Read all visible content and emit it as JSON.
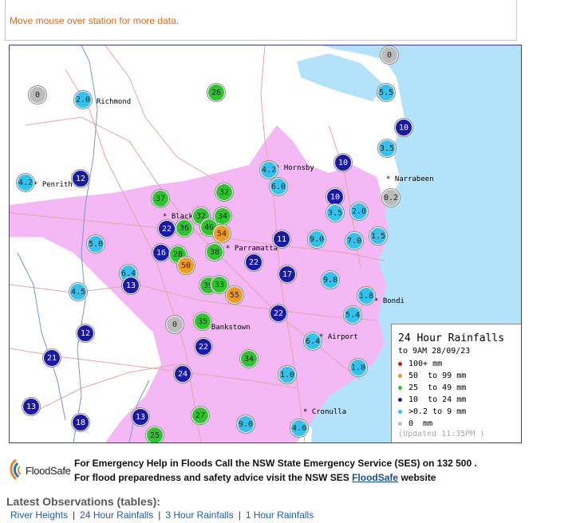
{
  "hint": "Move mouse over station for more data.",
  "colors": {
    "water": "#b3e2fb",
    "urban": "#f4b8f4",
    "road": "#e5a5a5",
    "river": "#7799cc",
    "cat_100": "#cc1a1a",
    "cat_50": "#f29a1e",
    "cat_25": "#2ec42e",
    "cat_10": "#1a1aaa",
    "cat_02": "#33c2ee",
    "cat_0": "#bbbbbb"
  },
  "legend": {
    "title": "24 Hour Rainfalls",
    "subtitle": "to 9AM 28/09/23",
    "items": [
      {
        "label": "100+ mm",
        "cat": "cat_100"
      },
      {
        "label": "50  to 99 mm",
        "cat": "cat_50"
      },
      {
        "label": "25  to 49 mm",
        "cat": "cat_25"
      },
      {
        "label": "10  to 24 mm",
        "cat": "cat_10"
      },
      {
        "label": ">0.2 to 9 mm",
        "cat": "cat_02"
      },
      {
        "label": "0  mm",
        "cat": "cat_0"
      }
    ],
    "updated": "(Updated 11:35PM  )"
  },
  "places": [
    "Richmond",
    "Penrith",
    "Blacktown",
    "Hornsby",
    "Narrabeen",
    "Parramatta",
    "Bondi",
    "Bankstown",
    "Airport",
    "Cronulla"
  ],
  "stations": [
    {
      "value": "0",
      "cat": "cat_0"
    },
    {
      "value": "2.0",
      "cat": "cat_02"
    },
    {
      "value": "26",
      "cat": "cat_25"
    },
    {
      "value": "0",
      "cat": "cat_0"
    },
    {
      "value": "5.5",
      "cat": "cat_02"
    },
    {
      "value": "10",
      "cat": "cat_10"
    },
    {
      "value": "3.5",
      "cat": "cat_02"
    },
    {
      "value": "4.2",
      "cat": "cat_02"
    },
    {
      "value": "12",
      "cat": "cat_10"
    },
    {
      "value": "4.2",
      "cat": "cat_02"
    },
    {
      "value": "6.0",
      "cat": "cat_02"
    },
    {
      "value": "10",
      "cat": "cat_10"
    },
    {
      "value": "0.2",
      "cat": "cat_0"
    },
    {
      "value": "37",
      "cat": "cat_25"
    },
    {
      "value": "32",
      "cat": "cat_25"
    },
    {
      "value": "10",
      "cat": "cat_10"
    },
    {
      "value": "3.5",
      "cat": "cat_02"
    },
    {
      "value": "2.0",
      "cat": "cat_02"
    },
    {
      "value": "32",
      "cat": "cat_25"
    },
    {
      "value": "34",
      "cat": "cat_25"
    },
    {
      "value": "22",
      "cat": "cat_10"
    },
    {
      "value": "36",
      "cat": "cat_25"
    },
    {
      "value": "46",
      "cat": "cat_25"
    },
    {
      "value": "54",
      "cat": "cat_50"
    },
    {
      "value": "5.0",
      "cat": "cat_02"
    },
    {
      "value": "11",
      "cat": "cat_10"
    },
    {
      "value": "9.0",
      "cat": "cat_02"
    },
    {
      "value": "7.0",
      "cat": "cat_02"
    },
    {
      "value": "1.5",
      "cat": "cat_02"
    },
    {
      "value": "16",
      "cat": "cat_10"
    },
    {
      "value": "28",
      "cat": "cat_25"
    },
    {
      "value": "38",
      "cat": "cat_25"
    },
    {
      "value": "50",
      "cat": "cat_50"
    },
    {
      "value": "22",
      "cat": "cat_10"
    },
    {
      "value": "6.4",
      "cat": "cat_02"
    },
    {
      "value": "13",
      "cat": "cat_10"
    },
    {
      "value": "17",
      "cat": "cat_10"
    },
    {
      "value": "9.8",
      "cat": "cat_02"
    },
    {
      "value": "39",
      "cat": "cat_25"
    },
    {
      "value": "33",
      "cat": "cat_25"
    },
    {
      "value": "55",
      "cat": "cat_50"
    },
    {
      "value": "4.5",
      "cat": "cat_02"
    },
    {
      "value": "1.8",
      "cat": "cat_02"
    },
    {
      "value": "0",
      "cat": "cat_0"
    },
    {
      "value": "35",
      "cat": "cat_25"
    },
    {
      "value": "22",
      "cat": "cat_10"
    },
    {
      "value": "5.4",
      "cat": "cat_02"
    },
    {
      "value": "12",
      "cat": "cat_10"
    },
    {
      "value": "6.4",
      "cat": "cat_02"
    },
    {
      "value": "21",
      "cat": "cat_10"
    },
    {
      "value": "22",
      "cat": "cat_10"
    },
    {
      "value": "34",
      "cat": "cat_25"
    },
    {
      "value": "1.0",
      "cat": "cat_02"
    },
    {
      "value": "24",
      "cat": "cat_10"
    },
    {
      "value": "1.0",
      "cat": "cat_02"
    },
    {
      "value": "13",
      "cat": "cat_10"
    },
    {
      "value": "27",
      "cat": "cat_25"
    },
    {
      "value": "18",
      "cat": "cat_10"
    },
    {
      "value": "13",
      "cat": "cat_10"
    },
    {
      "value": "9.0",
      "cat": "cat_02"
    },
    {
      "value": "4.0",
      "cat": "cat_02"
    },
    {
      "value": "25",
      "cat": "cat_25"
    }
  ],
  "footer": {
    "line1": "For Emergency Help in Floods Call the NSW State Emergency Service (SES) on 132 500 .",
    "line2_pre": "For flood preparedness and safety advice visit the NSW SES ",
    "line2_link": "FloodSafe",
    "line2_post": " website",
    "logo_text": "FloodSafe"
  },
  "observations": {
    "title": "Latest Observations (tables):",
    "links": [
      "River Heights",
      "24 Hour Rainfalls",
      "3 Hour Rainfalls",
      "1 Hour Rainfalls"
    ]
  }
}
